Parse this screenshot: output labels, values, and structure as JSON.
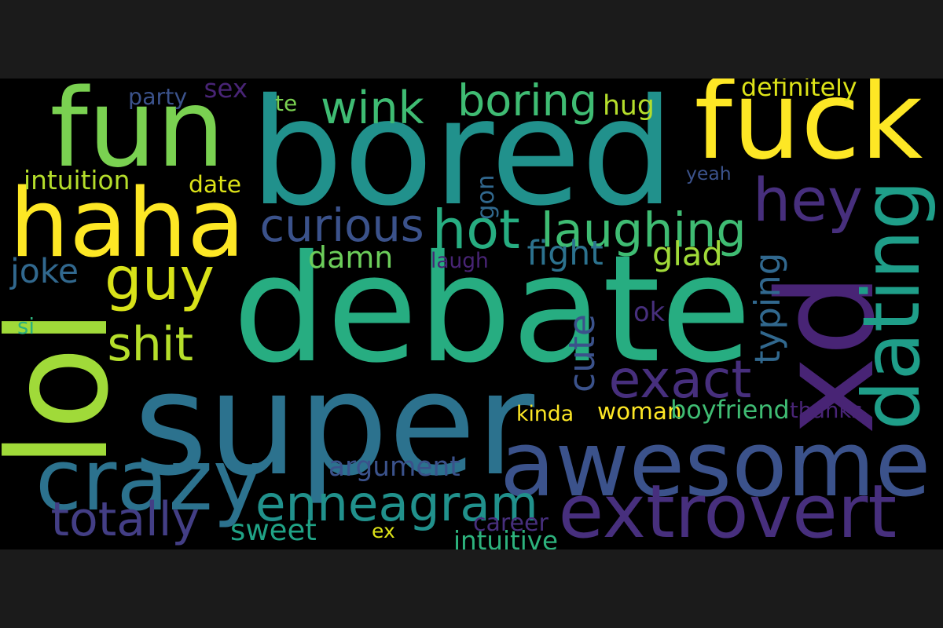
{
  "palette": {
    "yellow": "#fde725",
    "yellow_green": "#a0da39",
    "light_green": "#6ccd5a",
    "green": "#3fbc73",
    "teal_green": "#27ad81",
    "teal": "#21918c",
    "teal_blue": "#2c728e",
    "blue": "#3b528b",
    "indigo": "#472f7d",
    "purple": "#482475",
    "frame_background": "#1b1b1b",
    "cloud_background": "#000000"
  },
  "words": [
    {
      "id": "bored",
      "text": "bored",
      "color": "#21918c",
      "rotated": false
    },
    {
      "id": "debate",
      "text": "debate",
      "color": "#27ad81",
      "rotated": false
    },
    {
      "id": "super",
      "text": "super",
      "color": "#2c728e",
      "rotated": false
    },
    {
      "id": "fun",
      "text": "fun",
      "color": "#7ad151",
      "rotated": false
    },
    {
      "id": "fuck",
      "text": "fuck",
      "color": "#fde725",
      "rotated": false
    },
    {
      "id": "haha",
      "text": "haha",
      "color": "#fde725",
      "rotated": false
    },
    {
      "id": "xd",
      "text": "xd",
      "color": "#482475",
      "rotated": true
    },
    {
      "id": "awesome",
      "text": "awesome",
      "color": "#3b528b",
      "rotated": false
    },
    {
      "id": "lol",
      "text": "lol",
      "color": "#a0da39",
      "rotated": true
    },
    {
      "id": "hey",
      "text": "hey",
      "color": "#472f7d",
      "rotated": false
    },
    {
      "id": "dating",
      "text": "dating",
      "color": "#1f9e89",
      "rotated": true
    },
    {
      "id": "guy",
      "text": "guy",
      "color": "#d8e219",
      "rotated": false
    },
    {
      "id": "crazy",
      "text": "crazy",
      "color": "#2c728e",
      "rotated": false
    },
    {
      "id": "extrovert",
      "text": "extrovert",
      "color": "#472f7d",
      "rotated": false
    },
    {
      "id": "enneagram",
      "text": "enneagram",
      "color": "#21918c",
      "rotated": false
    },
    {
      "id": "hot",
      "text": "hot",
      "color": "#27ad81",
      "rotated": false
    },
    {
      "id": "laughing",
      "text": "laughing",
      "color": "#3fbc73",
      "rotated": false
    },
    {
      "id": "wink",
      "text": "wink",
      "color": "#3fbc73",
      "rotated": false
    },
    {
      "id": "boring",
      "text": "boring",
      "color": "#3fbc73",
      "rotated": false
    },
    {
      "id": "curious",
      "text": "curious",
      "color": "#3b528b",
      "rotated": false
    },
    {
      "id": "shit",
      "text": "shit",
      "color": "#b5de2b",
      "rotated": false
    },
    {
      "id": "damn",
      "text": "damn",
      "color": "#6ccd5a",
      "rotated": false
    },
    {
      "id": "exact",
      "text": "exact",
      "color": "#472f7d",
      "rotated": false
    },
    {
      "id": "totally",
      "text": "totally",
      "color": "#433e85",
      "rotated": false
    },
    {
      "id": "cute",
      "text": "cute",
      "color": "#3b528b",
      "rotated": true
    },
    {
      "id": "sweet",
      "text": "sweet",
      "color": "#20a386",
      "rotated": false
    },
    {
      "id": "argument",
      "text": "argument",
      "color": "#3b528b",
      "rotated": false
    },
    {
      "id": "fight",
      "text": "fight",
      "color": "#2c728e",
      "rotated": false
    },
    {
      "id": "glad",
      "text": "glad",
      "color": "#a0da39",
      "rotated": false
    },
    {
      "id": "hug",
      "text": "hug",
      "color": "#b5de2b",
      "rotated": false
    },
    {
      "id": "typing",
      "text": "typing",
      "color": "#31688e",
      "rotated": true
    },
    {
      "id": "gon",
      "text": "gon",
      "color": "#31688e",
      "rotated": true
    },
    {
      "id": "ok",
      "text": "ok",
      "color": "#472f7d",
      "rotated": false
    },
    {
      "id": "sex",
      "text": "sex",
      "color": "#482475",
      "rotated": false
    },
    {
      "id": "joke",
      "text": "joke",
      "color": "#31688e",
      "rotated": false
    },
    {
      "id": "intuition",
      "text": "intuition",
      "color": "#b5de2b",
      "rotated": false
    },
    {
      "id": "date",
      "text": "date",
      "color": "#dde318",
      "rotated": false
    },
    {
      "id": "party",
      "text": "party",
      "color": "#3b528b",
      "rotated": false
    },
    {
      "id": "te",
      "text": "te",
      "color": "#7ad151",
      "rotated": false
    },
    {
      "id": "definitely",
      "text": "definitely",
      "color": "#dde318",
      "rotated": false
    },
    {
      "id": "yeah",
      "text": "yeah",
      "color": "#3b528b",
      "rotated": false
    },
    {
      "id": "laugh",
      "text": "laugh",
      "color": "#482475",
      "rotated": false
    },
    {
      "id": "si",
      "text": "si",
      "color": "#2db27d",
      "rotated": false
    },
    {
      "id": "kinda",
      "text": "kinda",
      "color": "#fde725",
      "rotated": false
    },
    {
      "id": "woman",
      "text": "woman",
      "color": "#fde725",
      "rotated": false
    },
    {
      "id": "boyfriend",
      "text": "boyfriend",
      "color": "#3fbc73",
      "rotated": false
    },
    {
      "id": "thanks",
      "text": "thanks",
      "color": "#482475",
      "rotated": false
    },
    {
      "id": "career",
      "text": "career",
      "color": "#472f7d",
      "rotated": false
    },
    {
      "id": "ex",
      "text": "ex",
      "color": "#dde318",
      "rotated": false
    },
    {
      "id": "intuitive",
      "text": "intuitive",
      "color": "#2db27d",
      "rotated": false
    }
  ]
}
